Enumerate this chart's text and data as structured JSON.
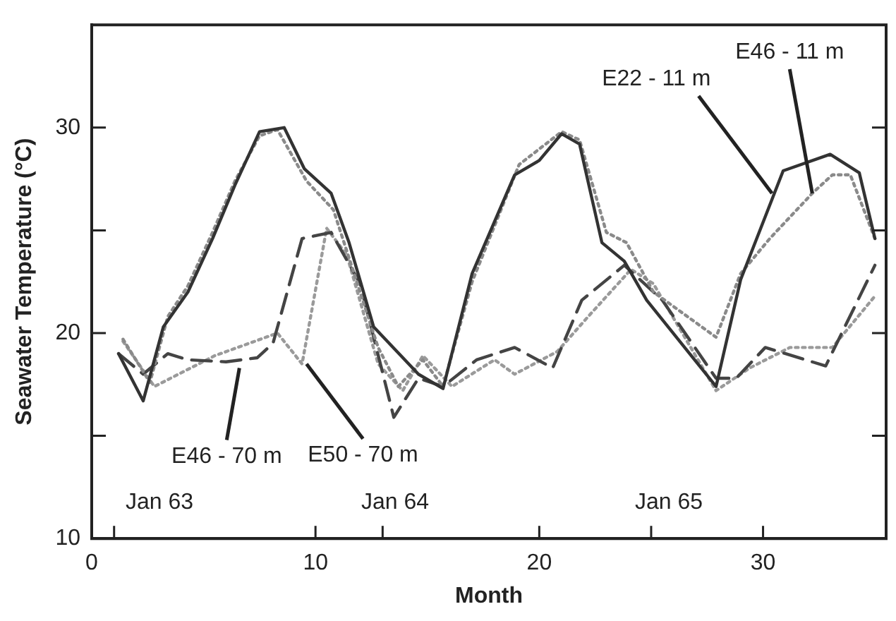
{
  "chart_data": {
    "type": "line",
    "xlabel": "Month",
    "ylabel": "Seawater Temperature (°C)",
    "xlim": [
      0,
      35.5
    ],
    "ylim": [
      10,
      35
    ],
    "xticks": [
      0,
      {
        "value": 1,
        "label": null
      },
      10,
      {
        "value": 13,
        "label": null
      },
      20,
      {
        "value": 25,
        "label": null
      },
      30
    ],
    "yticks": [
      10,
      {
        "value": 15,
        "label": null
      },
      20,
      {
        "value": 25,
        "label": null
      },
      30
    ],
    "grid": false,
    "legend": false,
    "marker": "none",
    "series": [
      {
        "color": "#333333",
        "line_style": "solid",
        "x": [
          1.2,
          2.3,
          3.2,
          4.3,
          5.4,
          6.4,
          7.5,
          8.6,
          9.5,
          10.7,
          11.5,
          12.6,
          14.6,
          15.7,
          17,
          18.9,
          20,
          21,
          21.8,
          22.8,
          23.8,
          24.8,
          27.9,
          29,
          30.9,
          33,
          34.3,
          35
        ],
        "values": [
          19,
          16.7,
          20.3,
          22,
          24.6,
          27.2,
          29.8,
          30,
          28,
          26.8,
          24.4,
          20.3,
          18,
          17.3,
          22.9,
          27.7,
          28.4,
          29.7,
          29.2,
          24.4,
          23.5,
          21.6,
          17.4,
          22.6,
          27.9,
          28.7,
          27.8,
          24.6
        ]
      },
      {
        "color": "#8a8a8a",
        "line_style": "dotted",
        "x": [
          1.4,
          2.6,
          3.4,
          4.3,
          5.4,
          6.4,
          7.5,
          8.3,
          9.6,
          10.8,
          12.8,
          13.7,
          14.8,
          15.7,
          17,
          19.1,
          21,
          21.8,
          23,
          23.9,
          25.1,
          27.9,
          29,
          30.3,
          32.2,
          33.1,
          33.9,
          35
        ],
        "values": [
          19.7,
          17.6,
          20.8,
          22.3,
          24.9,
          27.4,
          29.6,
          29.9,
          27.4,
          26,
          19.3,
          17.4,
          18.7,
          17.4,
          22.5,
          28.2,
          29.8,
          29.4,
          24.9,
          24.4,
          22,
          19.8,
          22.9,
          24.6,
          26.8,
          27.7,
          27.7,
          24.6
        ]
      },
      {
        "color": "#444444",
        "line_style": "dashed",
        "x": [
          1.2,
          2.3,
          3.4,
          4.3,
          6,
          7.4,
          8.1,
          9.4,
          10.7,
          12,
          13.5,
          14.6,
          15.7,
          17.2,
          18.9,
          20.6,
          21.9,
          23.8,
          25.5,
          27.9,
          28.8,
          30.1,
          32.8,
          35
        ],
        "values": [
          19,
          18,
          19,
          18.7,
          18.6,
          18.8,
          19.5,
          24.6,
          24.9,
          22.4,
          15.9,
          17.8,
          17.4,
          18.7,
          19.3,
          18.3,
          21.6,
          23.3,
          21.6,
          17.8,
          17.8,
          19.3,
          18.4,
          23.3
        ]
      },
      {
        "color": "#9a9a9a",
        "line_style": "dotted",
        "x": [
          1.4,
          2.8,
          5.5,
          8.3,
          9.4,
          10.5,
          11.4,
          12.8,
          13.9,
          14.8,
          16.1,
          18,
          18.9,
          20.8,
          22.1,
          24.1,
          25.1,
          27.9,
          29.4,
          31.2,
          33.1,
          35
        ],
        "values": [
          19.6,
          17.4,
          18.9,
          20,
          18.5,
          25.1,
          23.8,
          18.5,
          17.2,
          18.9,
          17.4,
          18.7,
          18,
          19.1,
          20.7,
          23.1,
          22.4,
          17.2,
          18.3,
          19.3,
          19.3,
          21.8
        ]
      }
    ],
    "annotations": [
      {
        "text": "E22 - 11 m",
        "x": 30.4,
        "y": 26.8
      },
      {
        "text": "E46 - 11 m",
        "x": 32.2,
        "y": 26.8
      },
      {
        "text": "E46 - 70 m",
        "x": 6.6,
        "y": 18.3
      },
      {
        "text": "E50 - 70 m",
        "x": 9.6,
        "y": 18.5
      },
      "Jan 63",
      "Jan 64",
      "Jan 65"
    ]
  }
}
